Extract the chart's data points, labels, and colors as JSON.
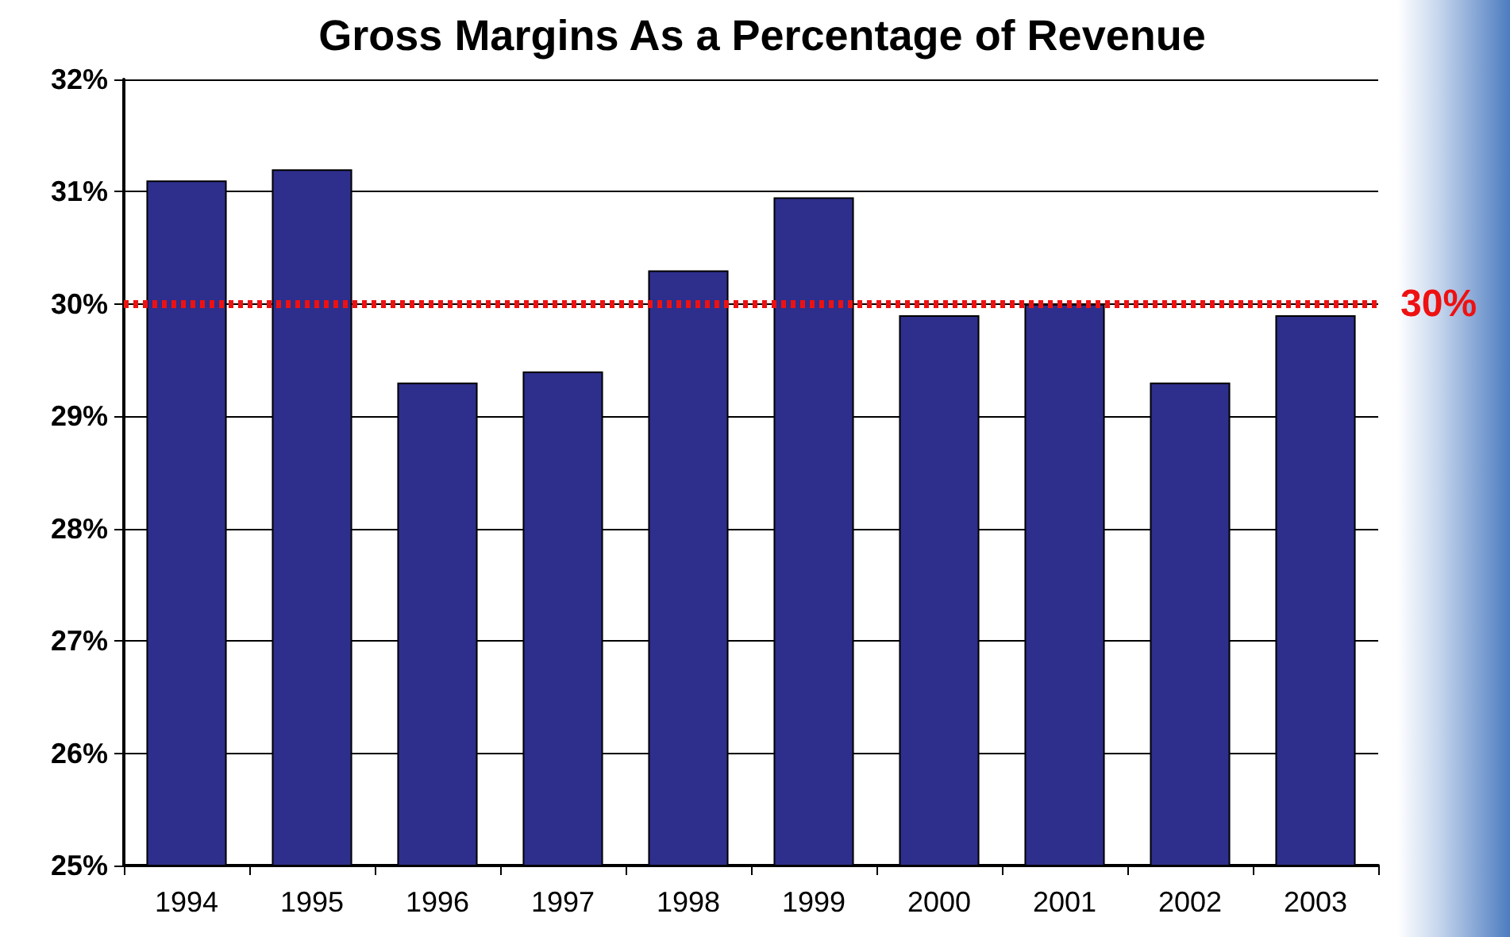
{
  "chart_data": {
    "type": "bar",
    "title": "Gross Margins As a Percentage of Revenue",
    "categories": [
      "1994",
      "1995",
      "1996",
      "1997",
      "1998",
      "1999",
      "2000",
      "2001",
      "2002",
      "2003"
    ],
    "values": [
      31.1,
      31.2,
      29.3,
      29.4,
      30.3,
      30.95,
      29.9,
      30.0,
      29.3,
      29.9
    ],
    "color": "#2e2e8c",
    "ylim": [
      25,
      32
    ],
    "yticks": [
      {
        "value": 25,
        "label": "25%"
      },
      {
        "value": 26,
        "label": "26%"
      },
      {
        "value": 27,
        "label": "27%"
      },
      {
        "value": 28,
        "label": "28%"
      },
      {
        "value": 29,
        "label": "29%"
      },
      {
        "value": 30,
        "label": "30%"
      },
      {
        "value": 31,
        "label": "31%"
      },
      {
        "value": 32,
        "label": "32%"
      }
    ],
    "grid": "y",
    "ref_lines": [
      {
        "axis": "y",
        "value": 30,
        "label": "30%",
        "color": "#ee1111",
        "line_style": "dotted"
      }
    ]
  }
}
